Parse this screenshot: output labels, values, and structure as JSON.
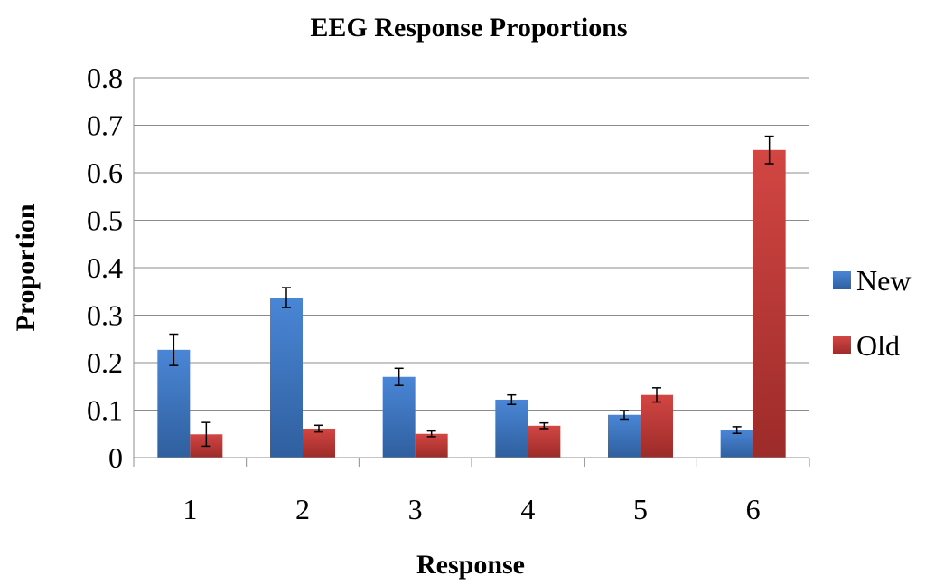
{
  "chart_data": {
    "type": "bar",
    "title": "EEG Response Proportions",
    "xlabel": "Response",
    "ylabel": "Proportion",
    "categories": [
      "1",
      "2",
      "3",
      "4",
      "5",
      "6"
    ],
    "ylim": [
      0,
      0.8
    ],
    "yticks": [
      "0",
      "0.1",
      "0.2",
      "0.3",
      "0.4",
      "0.5",
      "0.6",
      "0.7",
      "0.8"
    ],
    "grid": true,
    "legend_position": "right",
    "series": [
      {
        "name": "New",
        "color": "#3d72c0",
        "values": [
          0.227,
          0.337,
          0.17,
          0.122,
          0.09,
          0.058
        ],
        "errors": [
          0.033,
          0.021,
          0.018,
          0.01,
          0.009,
          0.007
        ]
      },
      {
        "name": "Old",
        "color": "#c23a38",
        "values": [
          0.049,
          0.061,
          0.05,
          0.067,
          0.132,
          0.648
        ],
        "errors": [
          0.025,
          0.007,
          0.006,
          0.006,
          0.015,
          0.029
        ]
      }
    ]
  }
}
